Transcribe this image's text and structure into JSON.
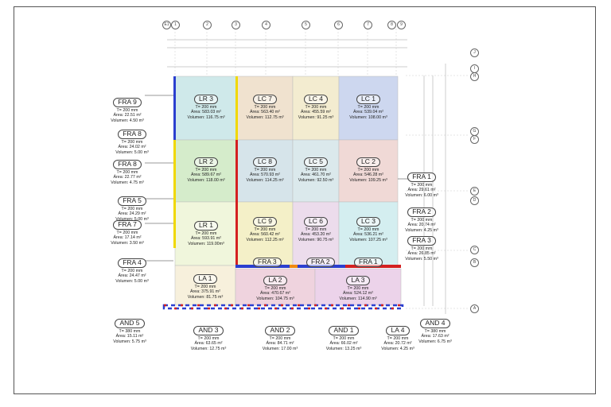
{
  "slabs": [
    {
      "id": "LR1",
      "name": "LR 1",
      "thickness": "T= 200 mm",
      "area": "Área: 593.91 m²",
      "volume": "Volumen: 119.00m³",
      "color": "#f0f6dc"
    },
    {
      "id": "LR2",
      "name": "LR 2",
      "thickness": "T= 200 mm",
      "area": "Área: 589.67 m²",
      "volume": "Volumen: 118.00 m³",
      "color": "#d5eccb"
    },
    {
      "id": "LR3",
      "name": "LR 3",
      "thickness": "T= 200 mm",
      "area": "Área: 583.03 m²",
      "volume": "Volumen: 116.75 m³",
      "color": "#cfe9ea"
    },
    {
      "id": "LC7",
      "name": "LC 7",
      "thickness": "T= 200 mm",
      "area": "Área: 563.40 m²",
      "volume": "Volumen: 112.75 m³",
      "color": "#f0e2cf"
    },
    {
      "id": "LC4",
      "name": "LC 4",
      "thickness": "T= 200 mm",
      "area": "Área: 455.59 m²",
      "volume": "Volumen: 91.25 m³",
      "color": "#f3ecd0"
    },
    {
      "id": "LC1",
      "name": "LC 1",
      "thickness": "T= 200 mm",
      "area": "Área: 539.04 m²",
      "volume": "Volumen: 108.00 m³",
      "color": "#cdd7ef"
    },
    {
      "id": "LC8",
      "name": "LC 8",
      "thickness": "T= 200 mm",
      "area": "Área: 570.93 m²",
      "volume": "Volumen: 114.25 m³",
      "color": "#d6e4ea"
    },
    {
      "id": "LC5",
      "name": "LC 5",
      "thickness": "T= 200 mm",
      "area": "Área: 461.70 m²",
      "volume": "Volumen: 92.50 m³",
      "color": "#dbe9ec"
    },
    {
      "id": "LC2",
      "name": "LC 2",
      "thickness": "T= 200 mm",
      "area": "Área: 546.28 m²",
      "volume": "Volumen: 109.25 m³",
      "color": "#f0d9d6"
    },
    {
      "id": "LC9",
      "name": "LC 9",
      "thickness": "T= 200 mm",
      "area": "Área: 560.42 m²",
      "volume": "Volumen: 112.25 m³",
      "color": "#f4f0c8"
    },
    {
      "id": "LC6",
      "name": "LC 6",
      "thickness": "T= 200 mm",
      "area": "Área: 453.20 m²",
      "volume": "Volumen: 90.75 m³",
      "color": "#ecdcec"
    },
    {
      "id": "LC3",
      "name": "LC 3",
      "thickness": "T= 200 mm",
      "area": "Área: 536.21 m²",
      "volume": "Volumen: 107.25 m³",
      "color": "#d4eef0"
    },
    {
      "id": "LA1",
      "name": "LA 1",
      "thickness": "T= 200 mm",
      "area": "Área: 375.91 m²",
      "volume": "Volumen: 81.75 m³",
      "color": "#f7f0dc"
    },
    {
      "id": "LA2",
      "name": "LA 2",
      "thickness": "T= 200 mm",
      "area": "Área: 470.67 m²",
      "volume": "Volumen: 104.75 m³",
      "color": "#efd3de"
    },
    {
      "id": "LA3",
      "name": "LA 3",
      "thickness": "T= 200 mm",
      "area": "Área: 524.12 m²",
      "volume": "Volumen: 114.90 m³",
      "color": "#ecd3ea"
    }
  ],
  "side_labels": [
    {
      "id": "FRA9",
      "name": "FRA 9",
      "lines": [
        "T= 200 mm",
        "Área: 22.51 m²",
        "Volumen: 4.50 m³"
      ]
    },
    {
      "id": "FRA8a",
      "name": "FRA 8",
      "lines": [
        "T= 200 mm",
        "Área: 24.02 m²",
        "Volumen: 5.00 m³"
      ]
    },
    {
      "id": "FRA8b",
      "name": "FRA 8",
      "lines": [
        "T= 200 mm",
        "Área: 22.77 m²",
        "Volumen: 4.75 m³"
      ]
    },
    {
      "id": "FRA5",
      "name": "FRA 5",
      "lines": [
        "T= 200 mm",
        "Área: 24.29 m²",
        "Volumen: 5.00 m³"
      ]
    },
    {
      "id": "FRA7",
      "name": "FRA 7",
      "lines": [
        "T= 200 mm",
        "Área: 17.14 m²",
        "Volumen: 3.50 m³"
      ]
    },
    {
      "id": "FRA4",
      "name": "FRA 4",
      "lines": [
        "T= 200 mm",
        "Área: 24.47 m²",
        "Volumen: 5.00 m³"
      ]
    },
    {
      "id": "FRA1r",
      "name": "FRA 1",
      "lines": [
        "T= 200 mm",
        "Área: 29.61 m²",
        "Volumen: 6.00 m³"
      ]
    },
    {
      "id": "FRA2r",
      "name": "FRA 2",
      "lines": [
        "T= 200 mm",
        "Área: 20.74 m²",
        "Volumen: 4.25 m³"
      ]
    },
    {
      "id": "FRA3r",
      "name": "FRA 3",
      "lines": [
        "T= 200 mm",
        "Área: 26.85 m²",
        "Volumen: 5.50 m³"
      ]
    },
    {
      "id": "AND5",
      "name": "AND 5",
      "lines": [
        "T= 380 mm",
        "Área: 15.11 m²",
        "Volumen: 5.75 m³"
      ]
    },
    {
      "id": "AND3",
      "name": "AND 3",
      "lines": [
        "T= 200 mm",
        "Área: 63.65 m²",
        "Volumen: 12.75 m³"
      ]
    },
    {
      "id": "AND2",
      "name": "AND 2",
      "lines": [
        "T= 200 mm",
        "Área: 84.71 m²",
        "Volumen: 17.00 m³"
      ]
    },
    {
      "id": "AND1",
      "name": "AND 1",
      "lines": [
        "T= 200 mm",
        "Área: 66.02 m²",
        "Volumen: 13.25 m³"
      ]
    },
    {
      "id": "LA4",
      "name": "LA 4",
      "lines": [
        "T= 200 mm",
        "Área: 20.72 m²",
        "Volumen: 4.25 m³"
      ]
    },
    {
      "id": "AND4",
      "name": "AND 4",
      "lines": [
        "T= 380 mm",
        "Área: 17.63 m²",
        "Volumen: 6.75 m³"
      ]
    }
  ],
  "strip_labels": {
    "fra3": "FRA 3",
    "fra2": "FRA 2",
    "fra1": "FRA 1"
  },
  "axis_top": [
    "E1",
    "1",
    "2",
    "3",
    "4",
    "5",
    "6",
    "7",
    "8",
    "9"
  ],
  "axis_right": [
    "J",
    "I",
    "H",
    "G",
    "F",
    "E",
    "D",
    "C",
    "B",
    "A"
  ],
  "colors": {
    "beam_red": "#d42020",
    "beam_blue": "#2b3fcf",
    "beam_yellow": "#f0d800",
    "beam_orange": "#f08a10",
    "grid": "#9a9a9a"
  }
}
